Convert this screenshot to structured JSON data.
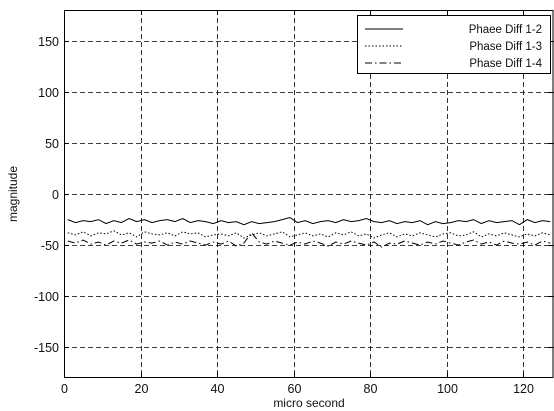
{
  "chart_data": {
    "type": "line",
    "title": "",
    "xlabel": "micro second",
    "ylabel": "magnitude",
    "xlim": [
      0,
      128
    ],
    "ylim": [
      -180,
      180
    ],
    "xticks": [
      0,
      20,
      40,
      60,
      80,
      100,
      120
    ],
    "yticks": [
      150,
      100,
      50,
      0,
      -50,
      -100,
      -150
    ],
    "grid": true,
    "legend_position": "top-right",
    "series": [
      {
        "name": "Phaee Diff 1-2",
        "style": "solid",
        "color": "#000000",
        "x": [
          1,
          3,
          5,
          7,
          9,
          11,
          13,
          15,
          17,
          19,
          21,
          23,
          25,
          27,
          29,
          31,
          33,
          35,
          37,
          39,
          41,
          43,
          45,
          47,
          49,
          51,
          53,
          55,
          57,
          59,
          61,
          63,
          65,
          67,
          69,
          71,
          73,
          75,
          77,
          79,
          81,
          83,
          85,
          87,
          89,
          91,
          93,
          95,
          97,
          99,
          101,
          103,
          105,
          107,
          109,
          111,
          113,
          115,
          117,
          119,
          121,
          123,
          125,
          127
        ],
        "y": [
          -25,
          -28,
          -26,
          -27,
          -25,
          -29,
          -26,
          -28,
          -24,
          -27,
          -25,
          -28,
          -26,
          -25,
          -27,
          -24,
          -28,
          -26,
          -27,
          -29,
          -26,
          -28,
          -27,
          -30,
          -27,
          -29,
          -28,
          -27,
          -25,
          -23,
          -28,
          -26,
          -29,
          -27,
          -26,
          -28,
          -25,
          -27,
          -26,
          -24,
          -27,
          -28,
          -26,
          -29,
          -27,
          -28,
          -26,
          -30,
          -27,
          -29,
          -28,
          -26,
          -27,
          -25,
          -29,
          -26,
          -28,
          -27,
          -26,
          -30,
          -25,
          -28,
          -26,
          -27
        ]
      },
      {
        "name": "Phase Diff 1-3",
        "style": "dotted",
        "color": "#000000",
        "x": [
          1,
          3,
          5,
          7,
          9,
          11,
          13,
          15,
          17,
          19,
          21,
          23,
          25,
          27,
          29,
          31,
          33,
          35,
          37,
          39,
          41,
          43,
          45,
          47,
          49,
          51,
          53,
          55,
          57,
          59,
          61,
          63,
          65,
          67,
          69,
          71,
          73,
          75,
          77,
          79,
          81,
          83,
          85,
          87,
          89,
          91,
          93,
          95,
          97,
          99,
          101,
          103,
          105,
          107,
          109,
          111,
          113,
          115,
          117,
          119,
          121,
          123,
          125,
          127
        ],
        "y": [
          -38,
          -40,
          -37,
          -41,
          -38,
          -39,
          -36,
          -40,
          -38,
          -42,
          -37,
          -39,
          -40,
          -38,
          -41,
          -37,
          -39,
          -38,
          -42,
          -40,
          -39,
          -41,
          -38,
          -43,
          -40,
          -38,
          -41,
          -39,
          -37,
          -42,
          -40,
          -38,
          -41,
          -39,
          -42,
          -38,
          -40,
          -37,
          -41,
          -39,
          -43,
          -40,
          -38,
          -42,
          -39,
          -41,
          -38,
          -40,
          -42,
          -39,
          -38,
          -41,
          -40,
          -37,
          -42,
          -39,
          -41,
          -38,
          -40,
          -42,
          -39,
          -41,
          -38,
          -40
        ]
      },
      {
        "name": "Phase Diff 1-4",
        "style": "dashdot",
        "color": "#000000",
        "x": [
          1,
          3,
          5,
          7,
          9,
          11,
          13,
          15,
          17,
          19,
          21,
          23,
          25,
          27,
          29,
          31,
          33,
          35,
          37,
          39,
          41,
          43,
          45,
          47,
          49,
          51,
          53,
          55,
          57,
          59,
          61,
          63,
          65,
          67,
          69,
          71,
          73,
          75,
          77,
          79,
          81,
          83,
          85,
          87,
          89,
          91,
          93,
          95,
          97,
          99,
          101,
          103,
          105,
          107,
          109,
          111,
          113,
          115,
          117,
          119,
          121,
          123,
          125,
          127
        ],
        "y": [
          -46,
          -48,
          -45,
          -49,
          -47,
          -50,
          -46,
          -48,
          -45,
          -49,
          -47,
          -48,
          -46,
          -50,
          -47,
          -49,
          -46,
          -48,
          -50,
          -47,
          -49,
          -46,
          -51,
          -48,
          -38,
          -47,
          -49,
          -46,
          -48,
          -50,
          -47,
          -49,
          -46,
          -48,
          -51,
          -47,
          -49,
          -46,
          -48,
          -50,
          -47,
          -52,
          -48,
          -49,
          -46,
          -48,
          -50,
          -47,
          -49,
          -46,
          -48,
          -50,
          -47,
          -45,
          -49,
          -47,
          -50,
          -46,
          -48,
          -49,
          -47,
          -50,
          -46,
          -48
        ]
      }
    ]
  }
}
